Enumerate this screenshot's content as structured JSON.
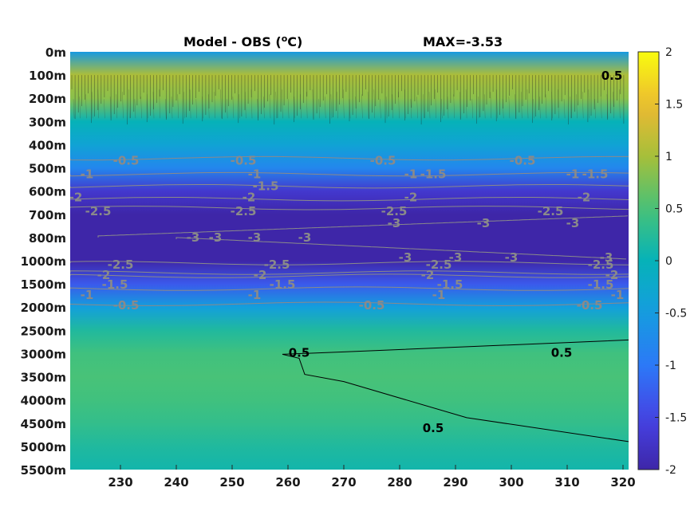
{
  "chart_data": {
    "type": "heatmap",
    "title_left": "Model - OBS (",
    "title_unit_sup": "o",
    "title_unit_after": "C)",
    "title_right": "MAX=-3.53",
    "xlabel": "",
    "ylabel": "",
    "x_ticks": [
      "230",
      "240",
      "250",
      "260",
      "270",
      "280",
      "290",
      "300",
      "310",
      "320"
    ],
    "x_tick_values": [
      230,
      240,
      250,
      260,
      270,
      280,
      290,
      300,
      310,
      320
    ],
    "xlim": [
      221,
      321
    ],
    "y_ticks": [
      "0m",
      "100m",
      "200m",
      "300m",
      "400m",
      "500m",
      "600m",
      "700m",
      "800m",
      "1000m",
      "1500m",
      "2000m",
      "2500m",
      "3000m",
      "3500m",
      "4000m",
      "4500m",
      "5000m",
      "5500m"
    ],
    "colorbar": {
      "range": [
        -2,
        2
      ],
      "ticks": [
        "2",
        "1.5",
        "1",
        "0.5",
        "0",
        "-0.5",
        "-1",
        "-1.5",
        "-2"
      ],
      "tick_values": [
        2,
        1.5,
        1,
        0.5,
        0,
        -0.5,
        -1,
        -1.5,
        -2
      ],
      "colormap": "parula"
    },
    "band_values": [
      {
        "depth": "0m",
        "value": -0.55
      },
      {
        "depth": "100m",
        "value": 1.05
      },
      {
        "depth": "200m",
        "value": 0.85
      },
      {
        "depth": "300m",
        "value": 0.0
      },
      {
        "depth": "400m",
        "value": -0.35
      },
      {
        "depth": "500m",
        "value": -0.8
      },
      {
        "depth": "600m",
        "value": -1.7
      },
      {
        "depth": "700m",
        "value": -2.0
      },
      {
        "depth": "800m",
        "value": -2.0
      },
      {
        "depth": "1000m",
        "value": -2.0
      },
      {
        "depth": "1500m",
        "value": -1.3
      },
      {
        "depth": "2000m",
        "value": -0.45
      },
      {
        "depth": "2500m",
        "value": 0.2
      },
      {
        "depth": "3000m",
        "value": 0.45
      },
      {
        "depth": "3500m",
        "value": 0.5
      },
      {
        "depth": "4000m",
        "value": 0.45
      },
      {
        "depth": "4500m",
        "value": 0.35
      },
      {
        "depth": "5000m",
        "value": 0.2
      },
      {
        "depth": "5500m",
        "value": 0.1
      }
    ],
    "contour_labels": [
      {
        "text": "-0.5",
        "x": 231,
        "depth": "500m",
        "color": "gray"
      },
      {
        "text": "-0.5",
        "x": 252,
        "depth": "500m",
        "color": "gray"
      },
      {
        "text": "-0.5",
        "x": 277,
        "depth": "500m",
        "color": "gray"
      },
      {
        "text": "-0.5",
        "x": 302,
        "depth": "500m",
        "color": "gray"
      },
      {
        "text": "-1",
        "x": 224,
        "depth": "500m",
        "color": "gray"
      },
      {
        "text": "-1",
        "x": 254,
        "depth": "500m",
        "color": "gray"
      },
      {
        "text": "-1",
        "x": 282,
        "depth": "500m",
        "color": "gray"
      },
      {
        "text": "-1",
        "x": 311,
        "depth": "500m",
        "color": "gray"
      },
      {
        "text": "-1.5",
        "x": 256,
        "depth": "600m",
        "color": "gray"
      },
      {
        "text": "-1.5",
        "x": 286,
        "depth": "500m",
        "color": "gray"
      },
      {
        "text": "-1.5",
        "x": 315,
        "depth": "500m",
        "color": "gray"
      },
      {
        "text": "-2",
        "x": 222,
        "depth": "600m",
        "color": "gray"
      },
      {
        "text": "-2",
        "x": 253,
        "depth": "600m",
        "color": "gray"
      },
      {
        "text": "-2",
        "x": 282,
        "depth": "600m",
        "color": "gray"
      },
      {
        "text": "-2",
        "x": 313,
        "depth": "600m",
        "color": "gray"
      },
      {
        "text": "-2.5",
        "x": 226,
        "depth": "700m",
        "color": "gray"
      },
      {
        "text": "-2.5",
        "x": 252,
        "depth": "700m",
        "color": "gray"
      },
      {
        "text": "-2.5",
        "x": 279,
        "depth": "700m",
        "color": "gray"
      },
      {
        "text": "-2.5",
        "x": 307,
        "depth": "700m",
        "color": "gray"
      },
      {
        "text": "-3",
        "x": 279,
        "depth": "700m",
        "color": "gray"
      },
      {
        "text": "-3",
        "x": 295,
        "depth": "700m",
        "color": "gray"
      },
      {
        "text": "-3",
        "x": 311,
        "depth": "700m",
        "color": "gray"
      },
      {
        "text": "-3",
        "x": 247,
        "depth": "800m",
        "color": "gray"
      },
      {
        "text": "-3",
        "x": 263,
        "depth": "800m",
        "color": "gray"
      },
      {
        "text": "-3",
        "x": 243,
        "depth": "800m",
        "color": "gray"
      },
      {
        "text": "-3",
        "x": 254,
        "depth": "800m",
        "color": "gray"
      },
      {
        "text": "-3",
        "x": 281,
        "depth": "1000m",
        "color": "gray"
      },
      {
        "text": "-3",
        "x": 290,
        "depth": "1000m",
        "color": "gray"
      },
      {
        "text": "-3",
        "x": 300,
        "depth": "1000m",
        "color": "gray"
      },
      {
        "text": "-3",
        "x": 317,
        "depth": "1000m",
        "color": "gray"
      },
      {
        "text": "-2.5",
        "x": 230,
        "depth": "1000m",
        "color": "gray"
      },
      {
        "text": "-2.5",
        "x": 258,
        "depth": "1000m",
        "color": "gray"
      },
      {
        "text": "-2.5",
        "x": 287,
        "depth": "1000m",
        "color": "gray"
      },
      {
        "text": "-2.5",
        "x": 316,
        "depth": "1000m",
        "color": "gray"
      },
      {
        "text": "-2",
        "x": 227,
        "depth": "1000m",
        "color": "gray"
      },
      {
        "text": "-2",
        "x": 255,
        "depth": "1000m",
        "color": "gray"
      },
      {
        "text": "-2",
        "x": 285,
        "depth": "1000m",
        "color": "gray"
      },
      {
        "text": "-2",
        "x": 318,
        "depth": "1000m",
        "color": "gray"
      },
      {
        "text": "-1.5",
        "x": 229,
        "depth": "1500m",
        "color": "gray"
      },
      {
        "text": "-1.5",
        "x": 259,
        "depth": "1500m",
        "color": "gray"
      },
      {
        "text": "-1.5",
        "x": 289,
        "depth": "1500m",
        "color": "gray"
      },
      {
        "text": "-1.5",
        "x": 316,
        "depth": "1500m",
        "color": "gray"
      },
      {
        "text": "-1",
        "x": 224,
        "depth": "1500m",
        "color": "gray"
      },
      {
        "text": "-1",
        "x": 254,
        "depth": "1500m",
        "color": "gray"
      },
      {
        "text": "-1",
        "x": 287,
        "depth": "1500m",
        "color": "gray"
      },
      {
        "text": "-1",
        "x": 319,
        "depth": "1500m",
        "color": "gray"
      },
      {
        "text": "-0.5",
        "x": 231,
        "depth": "2000m",
        "color": "gray"
      },
      {
        "text": "-0.5",
        "x": 275,
        "depth": "2000m",
        "color": "gray"
      },
      {
        "text": "-0.5",
        "x": 314,
        "depth": "2000m",
        "color": "gray"
      },
      {
        "text": "0.5",
        "x": 262,
        "depth": "3000m",
        "color": "black"
      },
      {
        "text": "0.5",
        "x": 309,
        "depth": "3000m",
        "color": "black"
      },
      {
        "text": "0.5",
        "x": 286,
        "depth": "4500m",
        "color": "black"
      },
      {
        "text": "0.5",
        "x": 318,
        "depth": "100m",
        "color": "black"
      }
    ],
    "colors": {
      "contour_negative": "#8a8a8a",
      "contour_positive": "#000000",
      "frame": "#262626"
    }
  }
}
